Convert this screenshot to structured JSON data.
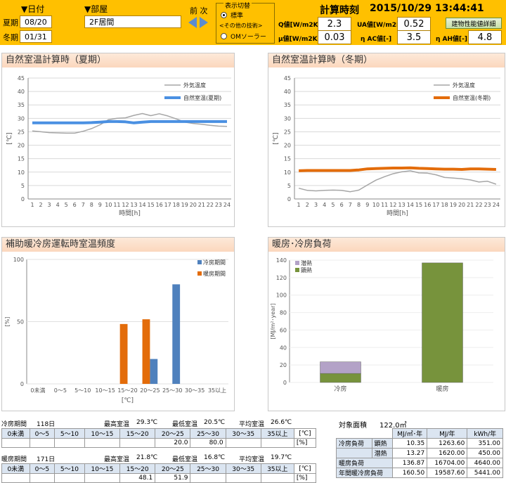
{
  "header": {
    "date_label": "▼日付",
    "room_label": "▼部屋",
    "summer_label": "夏期",
    "winter_label": "冬期",
    "summer_date": "08/20",
    "winter_date": "01/31",
    "room_value": "2F居間",
    "prev_next_label": "前 次",
    "display_switch_label": "表示切替",
    "radio_standard": "標準",
    "other_tech_label": "<その他の技術>",
    "radio_om_solar": "OMソーラー",
    "calc_time_label": "計算時刻",
    "calc_time_value": "2015/10/29 13:44:41",
    "q_label": "Q値[W/m2K]",
    "q_value": "2.3",
    "ua_label": "UA値[W/m2K]",
    "ua_value": "0.52",
    "detail_button": "建物性能値詳細",
    "mu_label": "μ値[W/m2K]",
    "mu_value": "0.03",
    "eta_ac_label": "η AC値[-]",
    "eta_ac_value": "3.5",
    "eta_ah_label": "η AH値[-]",
    "eta_ah_value": "4.8",
    "colors": {
      "accent": "#ffc000"
    }
  },
  "panels": {
    "summer_title": "自然室温計算時（夏期）",
    "winter_title": "自然室温計算時（冬期）",
    "freq_title": "補助暖冷房運転時室温頻度",
    "load_title": "暖房･冷房負荷"
  },
  "chart_data": [
    {
      "type": "line",
      "title": "自然室温計算時（夏期）",
      "xlabel": "時間[h]",
      "ylabel": "[℃]",
      "x": [
        1,
        2,
        3,
        4,
        5,
        6,
        7,
        8,
        9,
        10,
        11,
        12,
        13,
        14,
        15,
        16,
        17,
        18,
        19,
        20,
        21,
        22,
        23,
        24
      ],
      "ylim": [
        0,
        45
      ],
      "yticks": [
        0,
        5,
        10,
        15,
        20,
        25,
        30,
        35,
        40,
        45
      ],
      "grid": true,
      "legend": "top-right",
      "series": [
        {
          "name": "外気温度",
          "color": "#a6a6a6",
          "values": [
            25.3,
            25.0,
            24.7,
            24.6,
            24.5,
            24.5,
            25.2,
            26.2,
            27.6,
            29.5,
            30.0,
            30.2,
            31.1,
            31.8,
            31.0,
            31.7,
            30.9,
            29.8,
            28.6,
            28.1,
            27.8,
            27.4,
            27.1,
            27.0
          ]
        },
        {
          "name": "自然室温(夏期)",
          "color": "#4a90e2",
          "values": [
            28.3,
            28.3,
            28.3,
            28.3,
            28.3,
            28.3,
            28.3,
            28.4,
            28.6,
            28.8,
            28.8,
            28.7,
            28.3,
            28.6,
            28.8,
            28.8,
            28.8,
            28.8,
            28.8,
            28.8,
            28.8,
            28.8,
            28.8,
            28.8
          ]
        }
      ]
    },
    {
      "type": "line",
      "title": "自然室温計算時（冬期）",
      "xlabel": "時間[h]",
      "ylabel": "[℃]",
      "x": [
        1,
        2,
        3,
        4,
        5,
        6,
        7,
        8,
        9,
        10,
        11,
        12,
        13,
        14,
        15,
        16,
        17,
        18,
        19,
        20,
        21,
        22,
        23,
        24
      ],
      "ylim": [
        0,
        45
      ],
      "yticks": [
        0,
        5,
        10,
        15,
        20,
        25,
        30,
        35,
        40,
        45
      ],
      "grid": true,
      "legend": "top-right",
      "series": [
        {
          "name": "外気温度",
          "color": "#a6a6a6",
          "values": [
            4.0,
            3.2,
            3.0,
            3.2,
            3.3,
            3.2,
            2.7,
            3.3,
            5.2,
            7.0,
            8.3,
            9.4,
            10.1,
            10.5,
            9.7,
            9.6,
            9.0,
            8.0,
            7.8,
            7.5,
            7.1,
            6.3,
            6.6,
            5.5
          ]
        },
        {
          "name": "自然室温(冬期)",
          "color": "#e36c0a",
          "values": [
            10.5,
            10.6,
            10.6,
            10.6,
            10.6,
            10.6,
            10.6,
            10.8,
            11.2,
            11.3,
            11.4,
            11.5,
            11.5,
            11.6,
            11.4,
            11.3,
            11.2,
            11.1,
            11.1,
            11.0,
            11.2,
            11.2,
            11.1,
            11.0
          ]
        }
      ]
    },
    {
      "type": "bar",
      "title": "補助暖冷房運転時室温頻度",
      "xlabel": "[℃]",
      "ylabel": "[%]",
      "categories": [
        "0未満",
        "0～5",
        "5～10",
        "10～15",
        "15～20",
        "20～25",
        "25～30",
        "30～35",
        "35以上"
      ],
      "ylim": [
        0,
        100
      ],
      "yticks": [
        0,
        50,
        100
      ],
      "legend": "top-right",
      "series": [
        {
          "name": "冷房期間",
          "color": "#4f81bd",
          "values": [
            0,
            0,
            0,
            0,
            0,
            20.0,
            80.0,
            0,
            0
          ]
        },
        {
          "name": "暖房期間",
          "color": "#e36c0a",
          "values": [
            0,
            0,
            0,
            0,
            48.1,
            51.9,
            0,
            0,
            0
          ]
        }
      ]
    },
    {
      "type": "bar",
      "stacked": true,
      "title": "暖房･冷房負荷",
      "ylabel": "[MJ/m²･year]",
      "categories": [
        "冷房",
        "暖房"
      ],
      "ylim": [
        0,
        140
      ],
      "yticks": [
        0,
        20,
        40,
        60,
        80,
        100,
        120,
        140
      ],
      "legend": "top-left",
      "series": [
        {
          "name": "顕熱",
          "color": "#77933c",
          "values": [
            10.35,
            136.87
          ]
        },
        {
          "name": "潜熱",
          "color": "#b3a2c7",
          "values": [
            13.27,
            0
          ]
        }
      ]
    }
  ],
  "freq_tables": {
    "cooling": {
      "period_label": "冷房期間",
      "days": "118日",
      "max_label": "最高室温",
      "max_value": "29.3℃",
      "min_label": "最低室温",
      "min_value": "20.5℃",
      "avg_label": "平均室温",
      "avg_value": "26.6℃",
      "headers": [
        "0未満",
        "0～5",
        "5～10",
        "10～15",
        "15～20",
        "20～25",
        "25～30",
        "30～35",
        "35以上"
      ],
      "unit_c": "[℃]",
      "values": [
        "",
        "",
        "",
        "",
        "",
        "20.0",
        "80.0",
        "",
        ""
      ],
      "unit_pct": "[%]"
    },
    "heating": {
      "period_label": "暖房期間",
      "days": "171日",
      "max_label": "最高室温",
      "max_value": "21.8℃",
      "min_label": "最低室温",
      "min_value": "16.8℃",
      "avg_label": "平均室温",
      "avg_value": "19.7℃",
      "headers": [
        "0未満",
        "0～5",
        "5～10",
        "10～15",
        "15～20",
        "20～25",
        "25～30",
        "30～35",
        "35以上"
      ],
      "unit_c": "[℃]",
      "values": [
        "",
        "",
        "",
        "",
        "48.1",
        "51.9",
        "",
        "",
        ""
      ],
      "unit_pct": "[%]"
    }
  },
  "load_table": {
    "area_label": "対象面積",
    "area_value": "122.0㎡",
    "col_headers": [
      "MJ/㎡･年",
      "MJ/年",
      "kWh/年"
    ],
    "rows": [
      {
        "label": "冷房負荷",
        "sub": "顕熱",
        "values": [
          "10.35",
          "1263.60",
          "351.00"
        ]
      },
      {
        "label": "",
        "sub": "潜熱",
        "values": [
          "13.27",
          "1620.00",
          "450.00"
        ]
      },
      {
        "label": "暖房負荷",
        "sub": "",
        "values": [
          "136.87",
          "16704.00",
          "4640.00"
        ]
      },
      {
        "label": "年間暖冷房負荷",
        "sub": "",
        "values": [
          "160.50",
          "19587.60",
          "5441.00"
        ]
      }
    ]
  }
}
